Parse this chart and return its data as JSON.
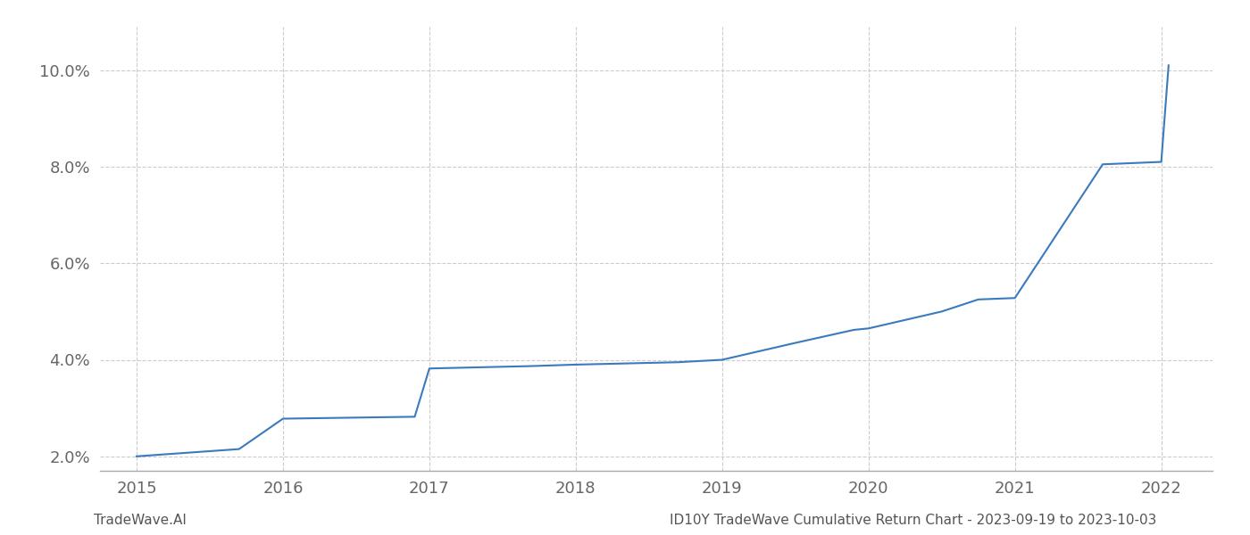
{
  "x_values": [
    2015.0,
    2015.7,
    2016.0,
    2016.9,
    2017.0,
    2017.7,
    2018.0,
    2018.7,
    2019.0,
    2019.5,
    2019.9,
    2020.0,
    2020.5,
    2020.75,
    2021.0,
    2021.6,
    2022.0,
    2022.05
  ],
  "y_values": [
    2.0,
    2.15,
    2.78,
    2.82,
    3.82,
    3.87,
    3.9,
    3.95,
    4.0,
    4.35,
    4.62,
    4.65,
    5.0,
    5.25,
    5.28,
    8.05,
    8.1,
    10.1
  ],
  "line_color": "#3a7abf",
  "line_width": 1.5,
  "xlim": [
    2014.75,
    2022.35
  ],
  "ylim": [
    1.7,
    10.9
  ],
  "xticks": [
    2015,
    2016,
    2017,
    2018,
    2019,
    2020,
    2021,
    2022
  ],
  "yticks": [
    2.0,
    4.0,
    6.0,
    8.0,
    10.0
  ],
  "ytick_labels": [
    "2.0%",
    "4.0%",
    "6.0%",
    "8.0%",
    "10.0%"
  ],
  "grid_color": "#cccccc",
  "grid_linestyle": "--",
  "grid_linewidth": 0.8,
  "bg_color": "#ffffff",
  "footer_left": "TradeWave.AI",
  "footer_right": "ID10Y TradeWave Cumulative Return Chart - 2023-09-19 to 2023-10-03",
  "footer_fontsize": 11,
  "tick_fontsize": 13,
  "spine_color": "#aaaaaa"
}
